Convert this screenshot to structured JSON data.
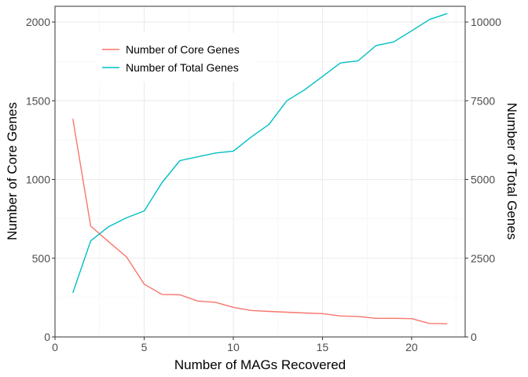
{
  "chart_data": {
    "type": "line",
    "xlabel": "Number of MAGs Recovered",
    "ylabel_left": "Number of Core Genes",
    "ylabel_right": "Number of Total Genes",
    "xlim": [
      0,
      23
    ],
    "ylim_left": [
      0,
      2100
    ],
    "ylim_right": [
      0,
      10500
    ],
    "xticks": [
      0,
      5,
      10,
      15,
      20
    ],
    "yticks_left": [
      0,
      500,
      1000,
      1500,
      2000
    ],
    "yticks_right": [
      0,
      2500,
      5000,
      7500,
      10000
    ],
    "grid": true,
    "legend_position": "top-left",
    "series": [
      {
        "name": "Number of Core Genes",
        "axis": "left",
        "color": "#F8766D",
        "x": [
          1,
          2,
          3,
          4,
          5,
          6,
          7,
          8,
          9,
          10,
          11,
          12,
          13,
          14,
          15,
          16,
          17,
          18,
          19,
          20,
          21,
          22
        ],
        "values": [
          1385,
          705,
          605,
          510,
          335,
          270,
          268,
          228,
          220,
          188,
          168,
          162,
          157,
          152,
          148,
          133,
          130,
          118,
          118,
          116,
          86,
          84
        ]
      },
      {
        "name": "Number of Total Genes",
        "axis": "right",
        "color": "#00BFC4",
        "x": [
          1,
          2,
          3,
          4,
          5,
          6,
          7,
          8,
          9,
          10,
          11,
          12,
          13,
          14,
          15,
          16,
          17,
          18,
          19,
          20,
          21,
          22
        ],
        "values": [
          1400,
          3050,
          3500,
          3780,
          4000,
          4900,
          5600,
          5720,
          5840,
          5900,
          6350,
          6750,
          7500,
          7850,
          8270,
          8700,
          8770,
          9250,
          9370,
          9720,
          10080,
          10270
        ]
      }
    ]
  }
}
